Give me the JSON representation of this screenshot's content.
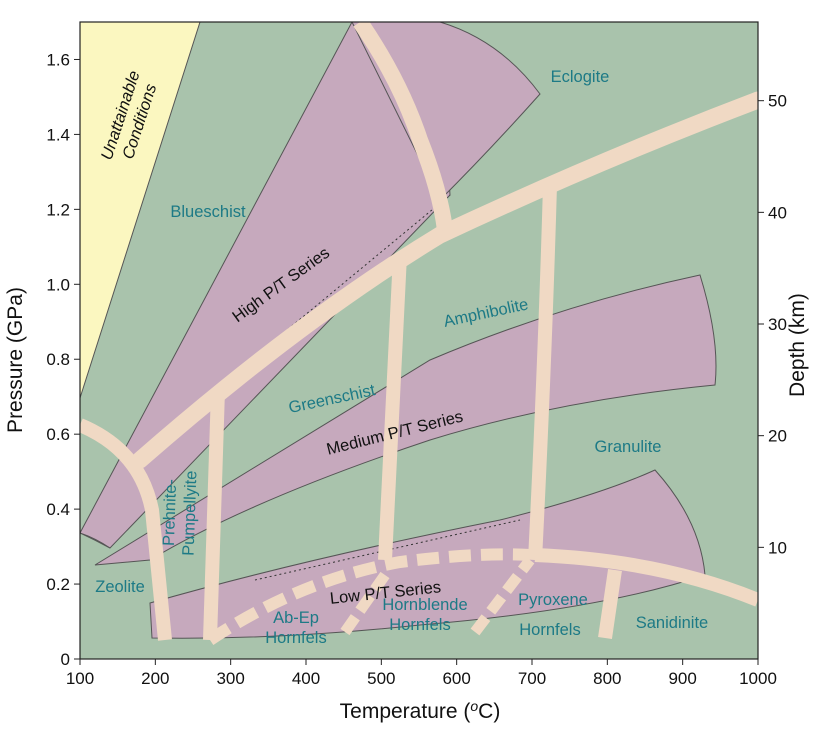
{
  "axes": {
    "x_label": "Temperature (°C)",
    "x_label_main": "Temperature (",
    "x_label_unit_sup": "o",
    "x_label_tail": "C)",
    "y_label": "Pressure (GPa)",
    "y2_label": "Depth (km)",
    "x_ticks": [
      "100",
      "200",
      "300",
      "400",
      "500",
      "600",
      "700",
      "800",
      "900",
      "1000"
    ],
    "y_ticks": [
      "0",
      "0.2",
      "0.4",
      "0.6",
      "0.8",
      "1.0",
      "1.2",
      "1.4",
      "1.6"
    ],
    "y2_ticks": [
      "10",
      "20",
      "30",
      "40",
      "50"
    ]
  },
  "colors": {
    "background_green": "#a9c3ac",
    "facies_purple": "#c6a9bd",
    "unattainable_yellow": "#fbf7c0",
    "band_tan": "#f0d9c4",
    "label_teal": "#1d7a86"
  },
  "regions": {
    "unattainable": [
      "Unattainable",
      "Conditions"
    ],
    "eclogite": "Eclogite",
    "blueschist": "Blueschist",
    "amphibolite": "Amphibolite",
    "greenschist": "Greenschist",
    "granulite": "Granulite",
    "prehnite_pumpellyite": [
      "Prehnite-",
      "Pumpellyite"
    ],
    "zeolite": "Zeolite",
    "ab_ep_hornfels": [
      "Ab-Ep",
      "Hornfels"
    ],
    "hornblende_hornfels": [
      "Hornblende",
      "Hornfels"
    ],
    "pyroxene_hornfels": [
      "Pyroxene",
      "Hornfels"
    ],
    "sanidinite": "Sanidinite"
  },
  "series": {
    "high": "High P/T Series",
    "medium": "Medium P/T Series",
    "low": "Low P/T Series"
  }
}
